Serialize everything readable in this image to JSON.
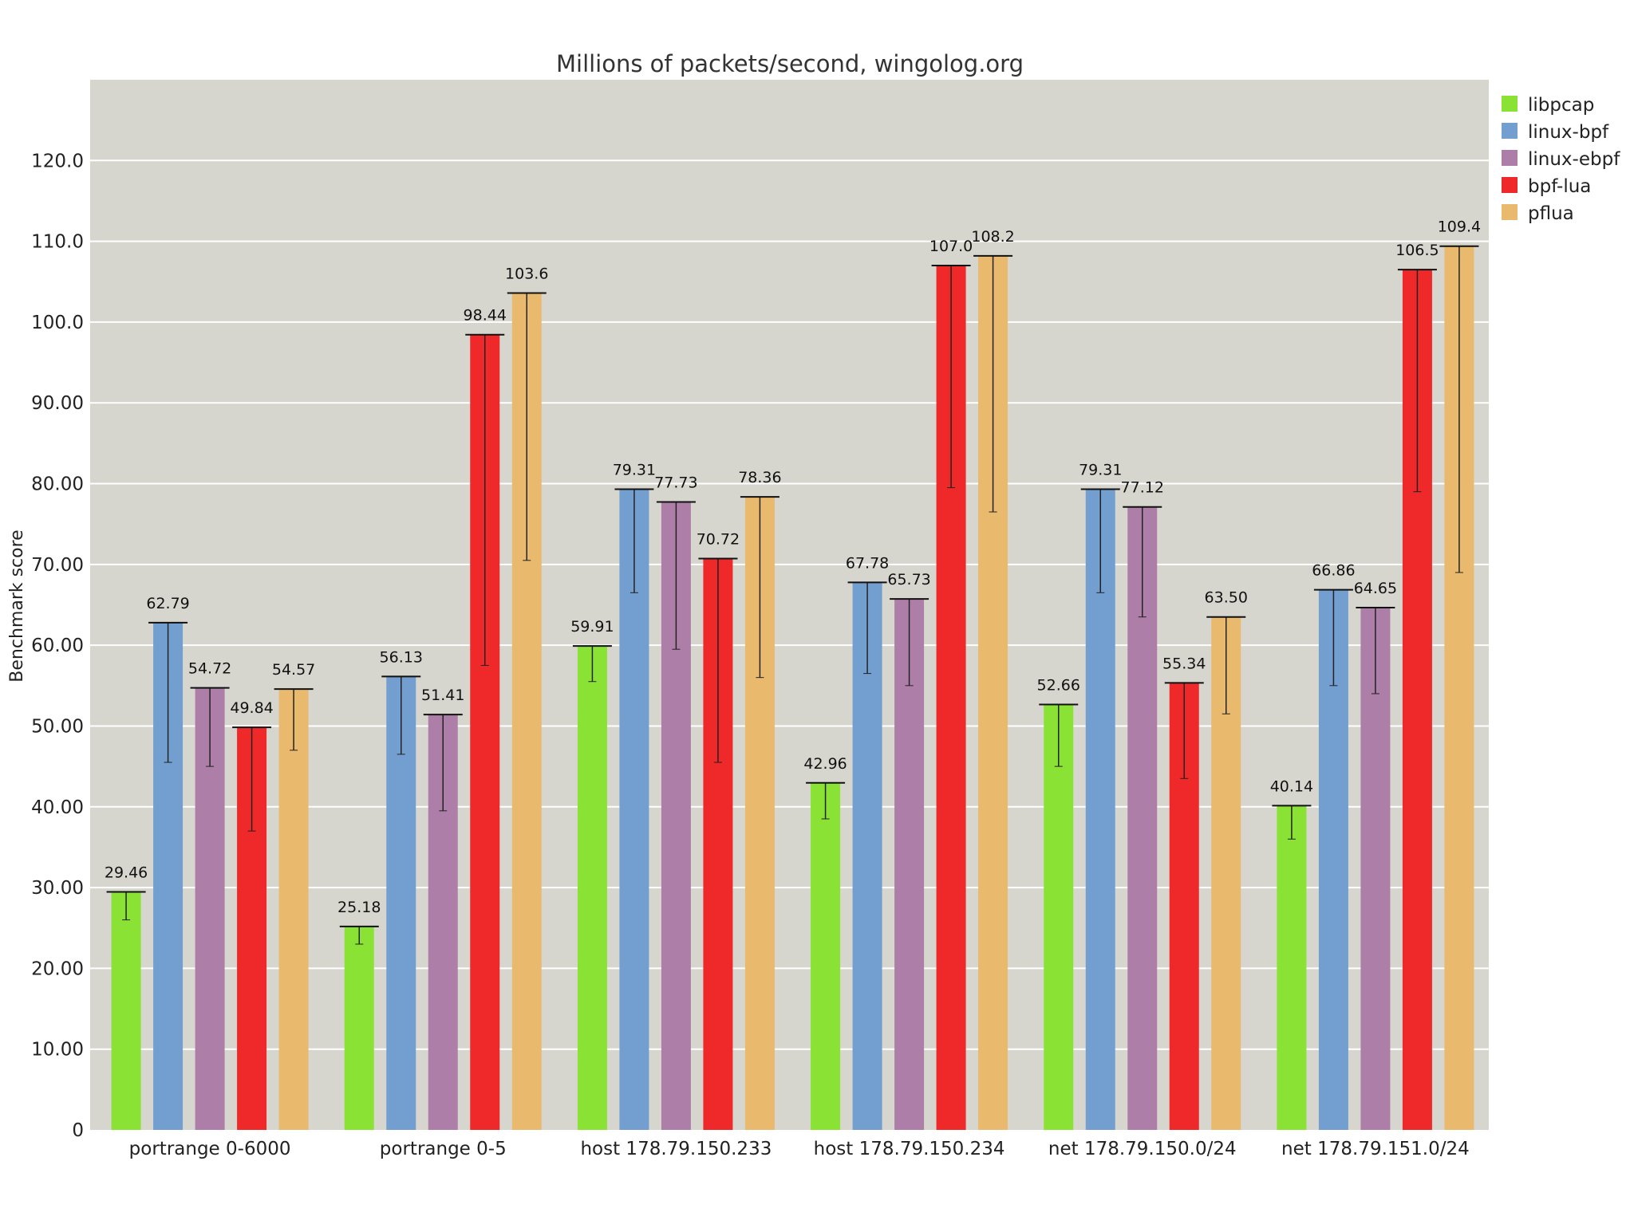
{
  "chart_data": {
    "type": "bar",
    "title": "Millions of packets/second, wingolog.org",
    "xlabel": "",
    "ylabel": "Benchmark score",
    "ylim": [
      0,
      130
    ],
    "yticks": [
      0,
      10,
      20,
      30,
      40,
      50,
      60,
      70,
      80,
      90,
      100,
      110,
      120
    ],
    "ytick_labels": [
      "0",
      "10.00",
      "20.00",
      "30.00",
      "40.00",
      "50.00",
      "60.00",
      "70.00",
      "80.00",
      "90.00",
      "100.0",
      "110.0",
      "120.0"
    ],
    "grid": true,
    "legend_position": "top-right, outside plot",
    "categories": [
      "portrange 0-6000",
      "portrange 0-5",
      "host 178.79.150.233",
      "host 178.79.150.234",
      "net 178.79.150.0/24",
      "net 178.79.151.0/24"
    ],
    "series": [
      {
        "name": "libpcap",
        "color": "#8ae234",
        "values": [
          29.46,
          25.18,
          59.91,
          42.96,
          52.66,
          40.14
        ],
        "labels": [
          "29.46",
          "25.18",
          "59.91",
          "42.96",
          "52.66",
          "40.14"
        ],
        "whisker_low": [
          26,
          23,
          55.5,
          38.5,
          45,
          36
        ]
      },
      {
        "name": "linux-bpf",
        "color": "#729fcf",
        "values": [
          62.79,
          56.13,
          79.31,
          67.78,
          79.31,
          66.86
        ],
        "labels": [
          "62.79",
          "56.13",
          "79.31",
          "67.78",
          "79.31",
          "66.86"
        ],
        "whisker_low": [
          45.5,
          46.5,
          66.5,
          56.5,
          66.5,
          55
        ]
      },
      {
        "name": "linux-ebpf",
        "color": "#ad7fa8",
        "values": [
          54.72,
          51.41,
          77.73,
          65.73,
          77.12,
          64.65
        ],
        "labels": [
          "54.72",
          "51.41",
          "77.73",
          "65.73",
          "77.12",
          "64.65"
        ],
        "whisker_low": [
          45,
          39.5,
          59.5,
          55,
          63.5,
          54
        ]
      },
      {
        "name": "bpf-lua",
        "color": "#ef2929",
        "values": [
          49.84,
          98.44,
          70.72,
          107.0,
          55.34,
          106.5
        ],
        "labels": [
          "49.84",
          "98.44",
          "70.72",
          "107.0",
          "55.34",
          "106.5"
        ],
        "whisker_low": [
          37,
          57.5,
          45.5,
          79.5,
          43.5,
          79
        ]
      },
      {
        "name": "pflua",
        "color": "#e9b96e",
        "values": [
          54.57,
          103.6,
          78.36,
          108.2,
          63.5,
          109.4
        ],
        "labels": [
          "54.57",
          "103.6",
          "78.36",
          "108.2",
          "63.50",
          "109.4"
        ],
        "whisker_low": [
          47,
          70.5,
          56,
          76.5,
          51.5,
          69
        ]
      }
    ]
  }
}
